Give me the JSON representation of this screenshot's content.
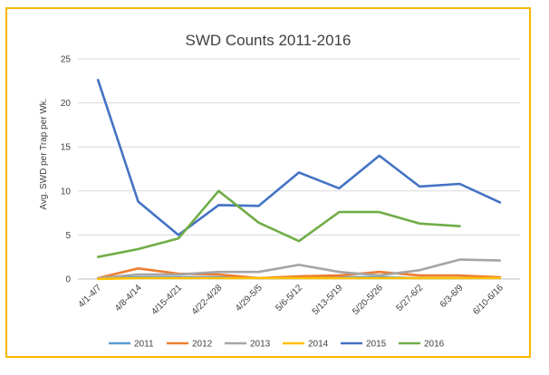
{
  "chart_data": {
    "type": "line",
    "title": "SWD Counts 2011-2016",
    "xlabel": "",
    "ylabel": "Avg. SWD per Trap per Wk.",
    "ylim": [
      0,
      25
    ],
    "yticks": [
      0,
      5,
      10,
      15,
      20,
      25
    ],
    "grid": "horizontal",
    "legend_position": "bottom",
    "categories": [
      "4/1-4/7",
      "4/8-4/14",
      "4/15-4/21",
      "4/22-4/28",
      "4/29-5/5",
      "5/6-5/12",
      "5/13-5/19",
      "5/20-5/26",
      "5/27-6/2",
      "6/3-6/9",
      "6/10-6/16"
    ],
    "series": [
      {
        "name": "2011",
        "color": "#5b9bd5",
        "values": [
          0.1,
          0.2,
          0.2,
          0.2,
          0.1,
          0.1,
          0.2,
          0.2,
          0.1,
          0.1,
          0.1
        ]
      },
      {
        "name": "2012",
        "color": "#ed7d31",
        "values": [
          0.1,
          1.2,
          0.6,
          0.5,
          0.1,
          0.3,
          0.4,
          0.8,
          0.4,
          0.4,
          0.2
        ]
      },
      {
        "name": "2013",
        "color": "#a5a5a5",
        "values": [
          0.1,
          0.5,
          0.5,
          0.8,
          0.8,
          1.6,
          0.8,
          0.4,
          1.0,
          2.2,
          2.1
        ]
      },
      {
        "name": "2014",
        "color": "#ffc000",
        "values": [
          0.0,
          0.1,
          0.1,
          0.1,
          0.1,
          0.1,
          0.1,
          0.1,
          0.1,
          0.1,
          0.1
        ]
      },
      {
        "name": "2015",
        "color": "#4472c4",
        "values": [
          22.6,
          8.8,
          5.0,
          8.4,
          8.3,
          12.1,
          10.3,
          14.0,
          10.5,
          10.8,
          8.7
        ]
      },
      {
        "name": "2016",
        "color": "#70ad47",
        "values": [
          2.5,
          3.4,
          4.6,
          10.0,
          6.4,
          4.3,
          7.6,
          7.6,
          6.3,
          6.0,
          null
        ]
      }
    ]
  }
}
